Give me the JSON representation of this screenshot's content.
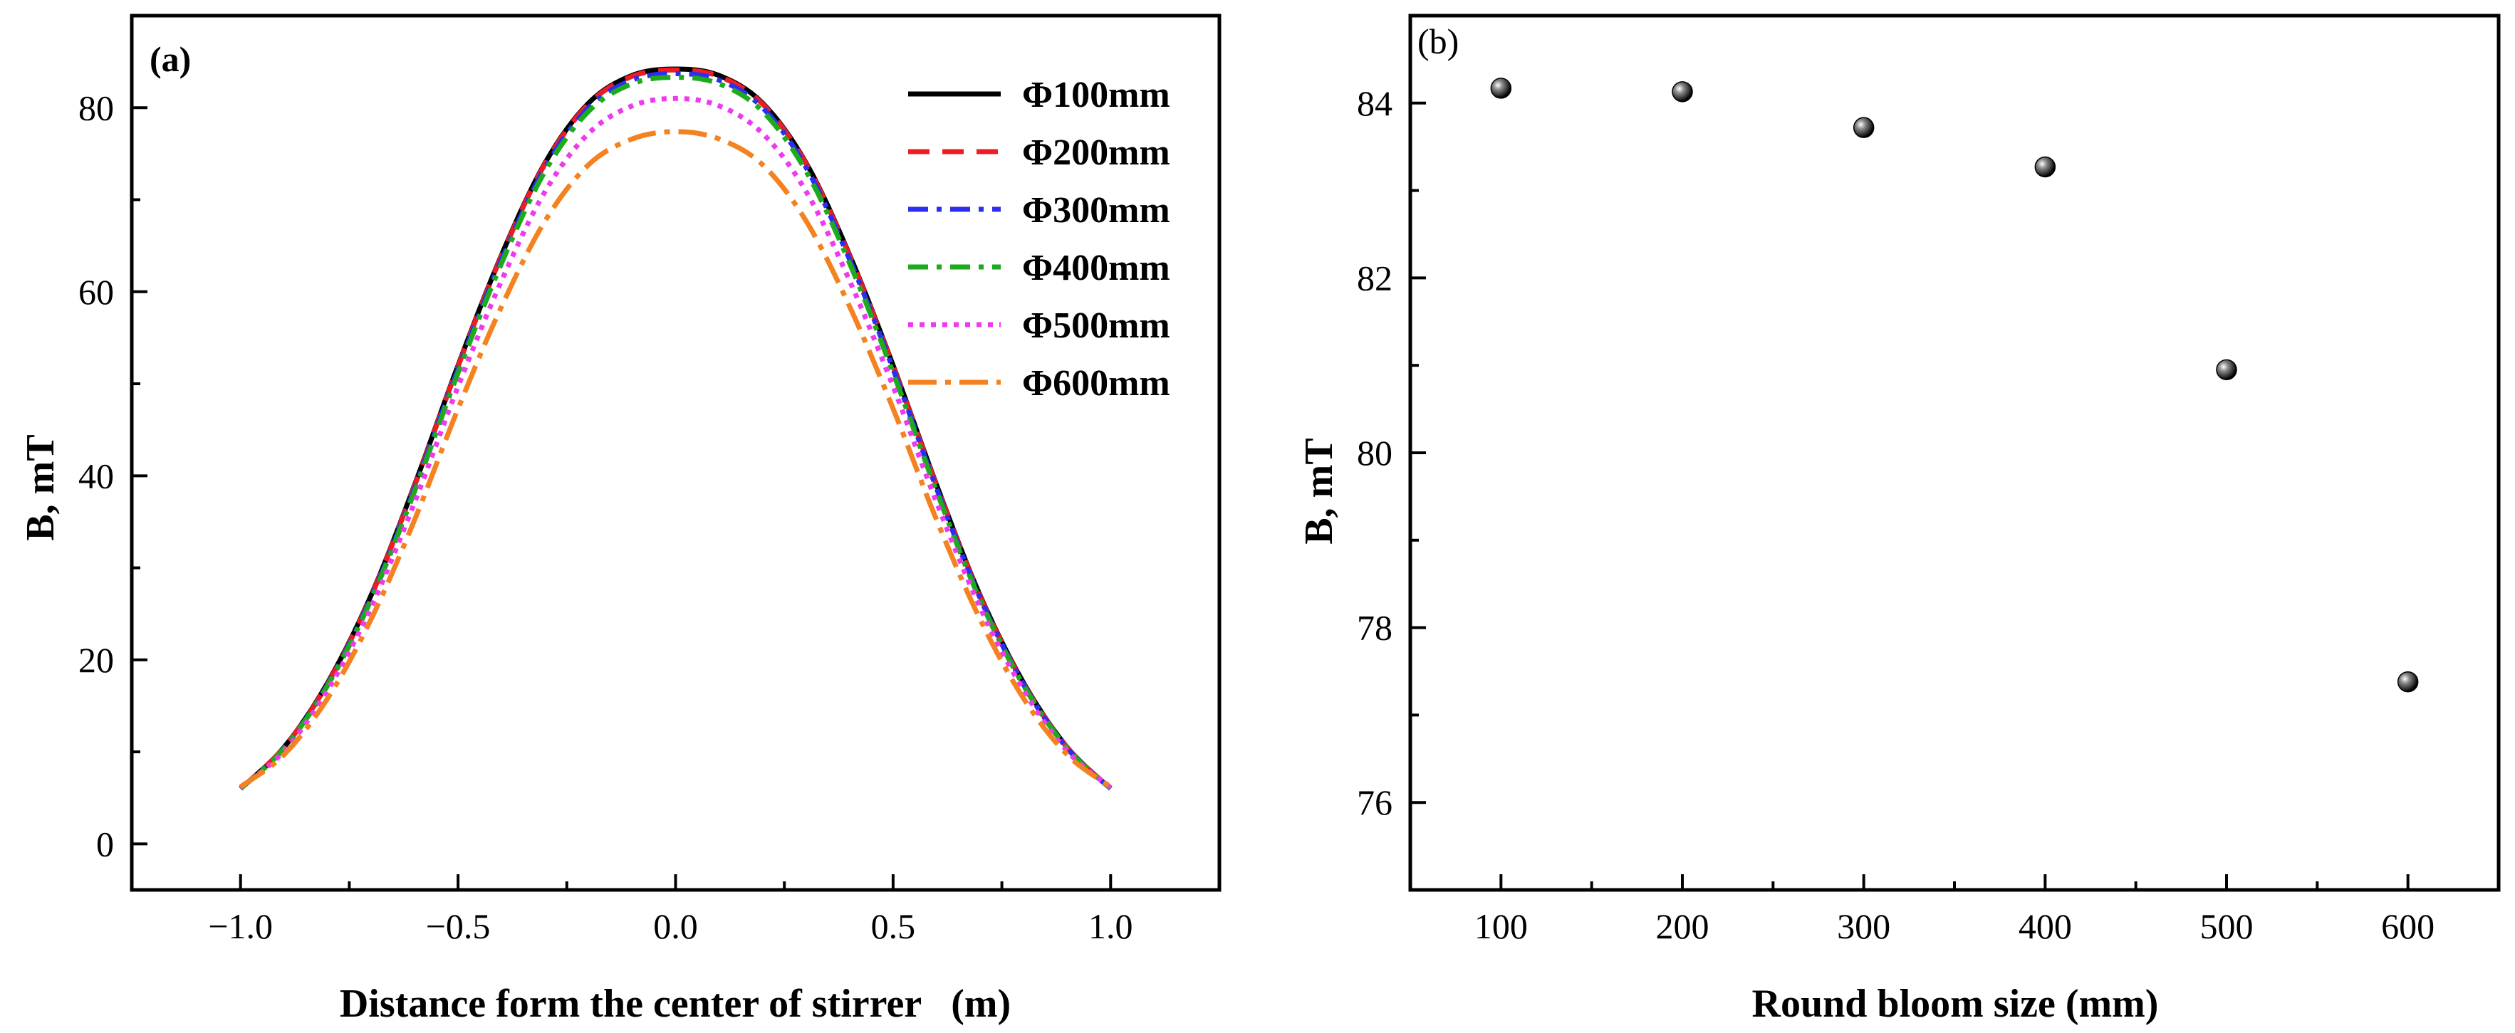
{
  "chart_data": [
    {
      "panel": "(a)",
      "type": "line",
      "xlabel": "Distance form the center of stirrer   (m)",
      "ylabel": "B, mT",
      "xlim": [
        -1.25,
        1.25
      ],
      "ylim": [
        -5,
        90
      ],
      "xticks": [
        -1.0,
        -0.5,
        0.0,
        0.5,
        1.0
      ],
      "xtick_labels": [
        "−1.0",
        "−0.5",
        "0.0",
        "0.5",
        "1.0"
      ],
      "yticks": [
        0,
        20,
        40,
        60,
        80
      ],
      "ytick_labels": [
        "0",
        "20",
        "40",
        "60",
        "80"
      ],
      "legend_position": "top-right",
      "grid": false,
      "x": [
        -1.0,
        -0.9,
        -0.8,
        -0.7,
        -0.6,
        -0.5,
        -0.4,
        -0.3,
        -0.2,
        -0.1,
        0.0,
        0.1,
        0.2,
        0.3,
        0.4,
        0.5,
        0.6,
        0.7,
        0.8,
        0.9,
        1.0
      ],
      "series": [
        {
          "name": "Φ100mm",
          "color": "#000000",
          "dash": "solid",
          "values": [
            6.0,
            10.5,
            17.5,
            27.0,
            39.0,
            52.0,
            64.0,
            74.0,
            80.5,
            83.5,
            84.2,
            83.5,
            80.5,
            74.0,
            64.0,
            52.0,
            39.0,
            27.0,
            17.5,
            10.5,
            6.0
          ]
        },
        {
          "name": "Φ200mm",
          "color": "#ee1c25",
          "dash": "dash",
          "values": [
            6.0,
            10.5,
            17.4,
            26.9,
            38.9,
            51.9,
            63.9,
            73.9,
            80.4,
            83.4,
            84.1,
            83.4,
            80.4,
            73.9,
            63.9,
            51.9,
            38.9,
            26.9,
            17.4,
            10.5,
            6.0
          ]
        },
        {
          "name": "Φ300mm",
          "color": "#2b2ff0",
          "dash": "dashdot",
          "values": [
            6.0,
            10.4,
            17.3,
            26.7,
            38.6,
            51.6,
            63.5,
            73.5,
            80.0,
            83.0,
            83.7,
            83.0,
            80.0,
            73.5,
            63.5,
            51.6,
            38.6,
            26.7,
            17.3,
            10.4,
            6.0
          ]
        },
        {
          "name": "Φ400mm",
          "color": "#1dab1d",
          "dash": "dashdot",
          "values": [
            6.0,
            10.4,
            17.2,
            26.5,
            38.3,
            51.2,
            63.1,
            73.1,
            79.6,
            82.6,
            83.3,
            82.6,
            79.6,
            73.1,
            63.1,
            51.2,
            38.3,
            26.5,
            17.2,
            10.4,
            6.0
          ]
        },
        {
          "name": "Φ500mm",
          "color": "#ee3aee",
          "dash": "dot",
          "values": [
            6.1,
            10.1,
            16.7,
            25.7,
            37.1,
            49.7,
            61.2,
            70.9,
            77.2,
            80.2,
            81.0,
            80.2,
            77.2,
            70.9,
            61.2,
            49.7,
            37.1,
            25.7,
            16.7,
            10.1,
            6.1
          ]
        },
        {
          "name": "Φ600mm",
          "color": "#f58220",
          "dash": "dashdotlong",
          "values": [
            6.2,
            9.7,
            15.8,
            24.4,
            35.2,
            47.3,
            58.4,
            67.7,
            73.8,
            76.6,
            77.4,
            76.6,
            73.8,
            67.7,
            58.4,
            47.3,
            35.2,
            24.4,
            15.8,
            9.7,
            6.2
          ]
        }
      ]
    },
    {
      "panel": "(b)",
      "type": "scatter",
      "xlabel": "Round bloom size (mm)",
      "ylabel": "B, mT",
      "xlim": [
        50,
        650
      ],
      "ylim": [
        75,
        85
      ],
      "xticks": [
        100,
        200,
        300,
        400,
        500,
        600
      ],
      "xtick_labels": [
        "100",
        "200",
        "300",
        "400",
        "500",
        "600"
      ],
      "yticks": [
        76,
        78,
        80,
        82,
        84
      ],
      "ytick_labels": [
        "76",
        "78",
        "80",
        "82",
        "84"
      ],
      "grid": false,
      "x": [
        100,
        200,
        300,
        400,
        500,
        600
      ],
      "values": [
        84.17,
        84.13,
        83.72,
        83.27,
        80.95,
        77.38
      ]
    }
  ]
}
